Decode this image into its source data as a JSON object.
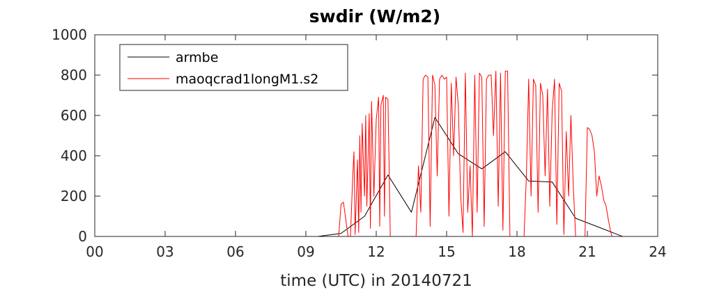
{
  "chart_data": {
    "type": "line",
    "title": "swdir  (W/m2)",
    "xlabel": "time (UTC) in 20140721",
    "ylabel": "",
    "xlim": [
      0,
      24
    ],
    "ylim": [
      0,
      1000
    ],
    "xticks": [
      0,
      3,
      6,
      9,
      12,
      15,
      18,
      21,
      24
    ],
    "xtick_labels": [
      "00",
      "03",
      "06",
      "09",
      "12",
      "15",
      "18",
      "21",
      "24"
    ],
    "yticks": [
      0,
      200,
      400,
      600,
      800,
      1000
    ],
    "ytick_labels": [
      "0",
      "200",
      "400",
      "600",
      "800",
      "1000"
    ],
    "legend_position": "top-left",
    "grid": false,
    "series": [
      {
        "name": "armbe",
        "color": "#000000",
        "x": [
          0,
          9.5,
          10.5,
          11.5,
          12.5,
          13.5,
          14.5,
          15.5,
          16.5,
          17.5,
          18.5,
          19.5,
          20.5,
          21.5,
          22.5,
          24
        ],
        "y": [
          0,
          0,
          15,
          100,
          305,
          120,
          590,
          410,
          335,
          420,
          275,
          270,
          90,
          45,
          0,
          0
        ]
      },
      {
        "name": "maoqcrad1longM1.s2",
        "color": "#ff0000",
        "x": [
          0,
          10.4,
          10.5,
          10.6,
          10.8,
          10.9,
          11.0,
          11.05,
          11.1,
          11.2,
          11.25,
          11.3,
          11.35,
          11.4,
          11.5,
          11.55,
          11.6,
          11.7,
          11.75,
          11.8,
          11.9,
          12.0,
          12.1,
          12.15,
          12.2,
          12.3,
          12.35,
          12.4,
          12.5,
          12.6,
          12.7,
          12.8,
          12.9,
          13.0,
          13.1,
          13.2,
          13.3,
          13.4,
          13.5,
          13.6,
          13.7,
          13.8,
          13.9,
          14.0,
          14.1,
          14.2,
          14.3,
          14.4,
          14.5,
          14.6,
          14.7,
          14.8,
          14.9,
          15.0,
          15.1,
          15.2,
          15.3,
          15.4,
          15.5,
          15.6,
          15.7,
          15.8,
          15.9,
          16.0,
          16.1,
          16.2,
          16.3,
          16.4,
          16.5,
          16.6,
          16.7,
          16.8,
          16.9,
          17.0,
          17.1,
          17.2,
          17.3,
          17.4,
          17.5,
          17.6,
          17.7,
          17.8,
          17.9,
          18.0,
          18.1,
          18.2,
          18.3,
          18.4,
          18.5,
          18.6,
          18.7,
          18.8,
          18.9,
          19.0,
          19.1,
          19.2,
          19.3,
          19.4,
          19.5,
          19.6,
          19.7,
          19.8,
          19.9,
          20.0,
          20.1,
          20.2,
          20.3,
          20.4,
          20.5,
          20.6,
          20.7,
          20.8,
          20.9,
          21.0,
          21.1,
          21.2,
          21.3,
          21.4,
          21.5,
          21.6,
          21.7,
          21.8,
          21.9,
          22.0,
          22.05,
          24
        ],
        "y": [
          0,
          0,
          160,
          170,
          0,
          0,
          300,
          420,
          10,
          380,
          20,
          500,
          120,
          560,
          200,
          600,
          150,
          610,
          40,
          670,
          200,
          580,
          690,
          50,
          650,
          700,
          100,
          690,
          680,
          0,
          0,
          0,
          0,
          0,
          0,
          0,
          0,
          0,
          0,
          0,
          0,
          350,
          120,
          780,
          800,
          790,
          50,
          800,
          750,
          300,
          780,
          800,
          780,
          790,
          100,
          760,
          400,
          790,
          650,
          200,
          20,
          810,
          120,
          350,
          0,
          800,
          120,
          810,
          790,
          50,
          780,
          800,
          800,
          500,
          820,
          150,
          810,
          30,
          820,
          820,
          0,
          0,
          0,
          0,
          0,
          0,
          0,
          300,
          780,
          200,
          780,
          750,
          120,
          760,
          700,
          300,
          730,
          150,
          620,
          780,
          60,
          760,
          720,
          10,
          520,
          200,
          600,
          250,
          0,
          0,
          0,
          0,
          0,
          540,
          530,
          500,
          420,
          200,
          300,
          250,
          180,
          150,
          80,
          20,
          0,
          0
        ]
      }
    ]
  }
}
